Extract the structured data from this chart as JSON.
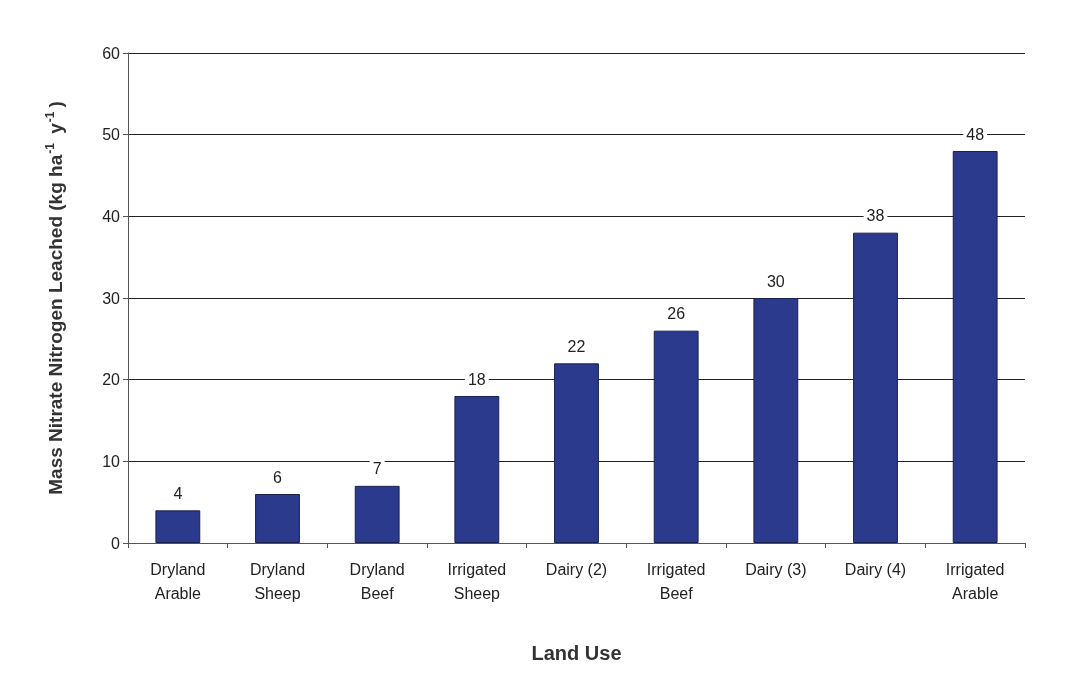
{
  "chart_data": {
    "type": "bar",
    "xlabel": "Land Use",
    "ylabel": "Mass Nitrate Nitrogen Leached (kg ha$^{-1}$ y$^{-1}$)",
    "categories": [
      "Dryland\nArable",
      "Dryland\nSheep",
      "Dryland\nBeef",
      "Irrigated\nSheep",
      "Dairy (2)",
      "Irrigated\nBeef",
      "Dairy (3)",
      "Dairy (4)",
      "Irrigated\nArable"
    ],
    "values": [
      4,
      6,
      7,
      18,
      22,
      26,
      30,
      38,
      48
    ],
    "color": "#2b3a8c",
    "ylim": [
      0,
      60
    ],
    "yticks": [
      0,
      10,
      20,
      30,
      40,
      50,
      60
    ],
    "grid": "y",
    "data_labels": true
  }
}
